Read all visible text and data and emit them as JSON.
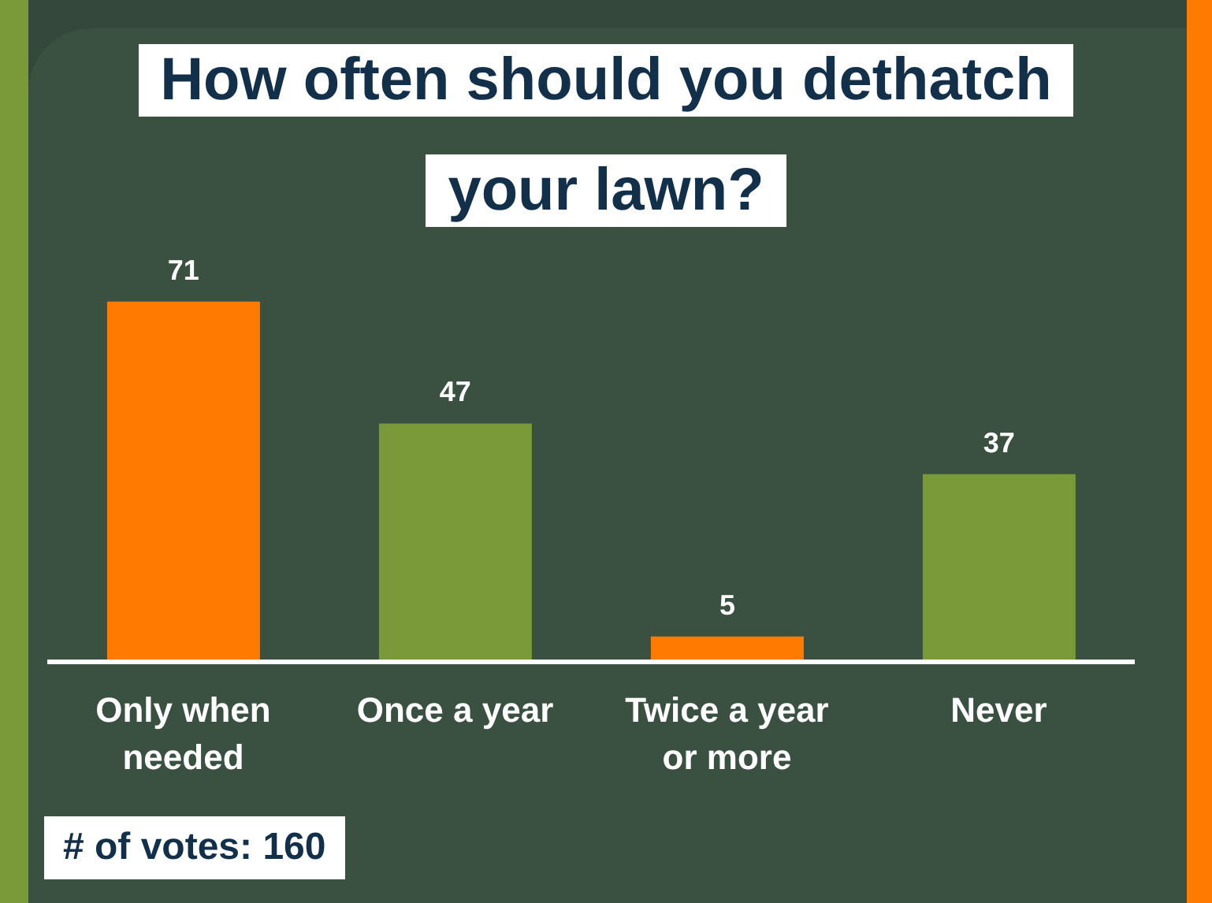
{
  "chart_data": {
    "type": "bar",
    "title": "How often should you dethatch your lawn?",
    "categories": [
      "Only when needed",
      "Once a year",
      "Twice a year or more",
      "Never"
    ],
    "values": [
      71,
      47,
      5,
      37
    ],
    "colors": [
      "#ff7a00",
      "#7a9a3a",
      "#ff7a00",
      "#7a9a3a"
    ],
    "data_labels": true,
    "annotations": [
      "# of votes: 160"
    ]
  }
}
